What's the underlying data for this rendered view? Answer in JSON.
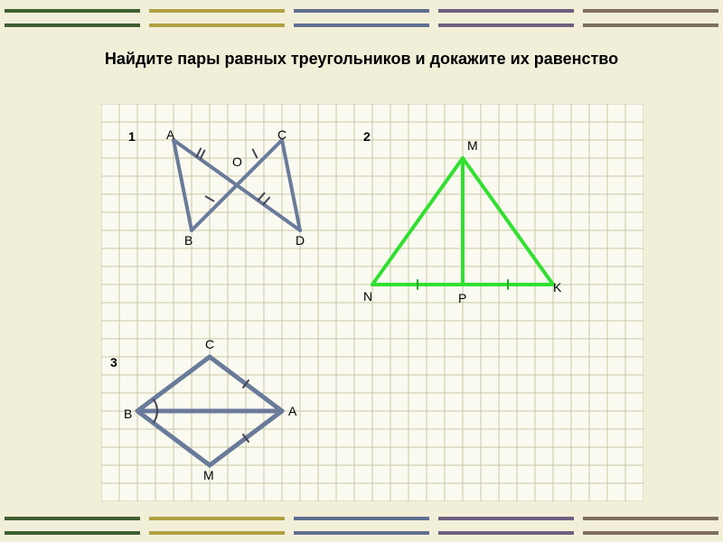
{
  "title": "Найдите пары равных треугольников и докажите их равенство",
  "band_colors": [
    "#3f5f2f",
    "#b0a040",
    "#5f6f8f",
    "#6f5f7f",
    "#7f6f5f"
  ],
  "grid": {
    "cols": 30,
    "rows": 22,
    "cell": 20,
    "color": "#c8c8a8",
    "bg": "#fafaf0"
  },
  "labels": {
    "n1": "1",
    "n2": "2",
    "n3": "3",
    "A1": "A",
    "B1": "B",
    "C1": "C",
    "D1": "D",
    "O1": "O",
    "M2": "M",
    "N2": "N",
    "P2": "P",
    "K2": "K",
    "B3": "B",
    "C3": "C",
    "A3": "A",
    "M3": "M"
  },
  "fig1": {
    "color": "#6a7a9a",
    "stroke_width": 4,
    "A": [
      4,
      2
    ],
    "B": [
      5,
      7
    ],
    "C": [
      10,
      2
    ],
    "D": [
      11,
      7
    ],
    "O": [
      7,
      3.5
    ],
    "lines": [
      [
        "A",
        "B"
      ],
      [
        "A",
        "D"
      ],
      [
        "B",
        "C"
      ],
      [
        "C",
        "D"
      ]
    ],
    "tick_color": "#445",
    "ticks": [
      {
        "seg": [
          "A",
          "O"
        ],
        "n": 2
      },
      {
        "seg": [
          "O",
          "D"
        ],
        "n": 2
      },
      {
        "seg": [
          "B",
          "O"
        ],
        "n": 1
      },
      {
        "seg": [
          "O",
          "C"
        ],
        "n": 1
      }
    ]
  },
  "fig2": {
    "color": "#30e030",
    "stroke_width": 4,
    "M": [
      20,
      3
    ],
    "N": [
      15,
      10
    ],
    "K": [
      25,
      10
    ],
    "P": [
      20,
      10
    ],
    "lines": [
      [
        "M",
        "N"
      ],
      [
        "M",
        "K"
      ],
      [
        "N",
        "K"
      ],
      [
        "M",
        "P"
      ]
    ],
    "tick_color": "#2aa52a",
    "ticks": [
      {
        "seg": [
          "N",
          "P"
        ],
        "n": 1
      },
      {
        "seg": [
          "P",
          "K"
        ],
        "n": 1
      }
    ]
  },
  "fig3": {
    "color": "#6a7a9a",
    "stroke_width": 5,
    "B": [
      2,
      17
    ],
    "C": [
      6,
      14
    ],
    "A": [
      10,
      17
    ],
    "M": [
      6,
      20
    ],
    "lines": [
      [
        "B",
        "C"
      ],
      [
        "C",
        "A"
      ],
      [
        "A",
        "M"
      ],
      [
        "M",
        "B"
      ],
      [
        "B",
        "A"
      ]
    ],
    "tick_color": "#445",
    "ticks": [
      {
        "seg": [
          "C",
          "A"
        ],
        "n": 1
      },
      {
        "seg": [
          "A",
          "M"
        ],
        "n": 1
      }
    ],
    "arcs": [
      "B_top",
      "B_bot"
    ]
  }
}
